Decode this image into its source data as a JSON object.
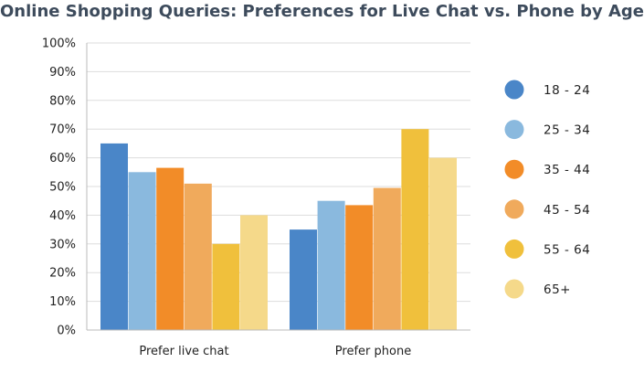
{
  "chart_data": {
    "type": "bar",
    "title": "Online Shopping Queries: Preferences for Live Chat vs. Phone by Age",
    "xlabel": "",
    "ylabel": "",
    "ylim": [
      0,
      100
    ],
    "yticks": [
      "0%",
      "10%",
      "20%",
      "30%",
      "40%",
      "50%",
      "60%",
      "70%",
      "80%",
      "90%",
      "100%"
    ],
    "categories": [
      "Prefer live chat",
      "Prefer phone"
    ],
    "series": [
      {
        "name": "18 - 24",
        "color": "#4a86c8",
        "values": [
          65,
          35
        ]
      },
      {
        "name": "25 - 34",
        "color": "#8ab9de",
        "values": [
          55,
          45
        ]
      },
      {
        "name": "35 - 44",
        "color": "#f28c28",
        "values": [
          56.5,
          43.5
        ]
      },
      {
        "name": "45 - 54",
        "color": "#f0aa5c",
        "values": [
          51,
          49.5
        ]
      },
      {
        "name": "55 - 64",
        "color": "#f0c03c",
        "values": [
          30,
          70
        ]
      },
      {
        "name": "65+",
        "color": "#f5d98a",
        "values": [
          40,
          60
        ]
      }
    ],
    "grid": true,
    "legend_position": "right"
  }
}
